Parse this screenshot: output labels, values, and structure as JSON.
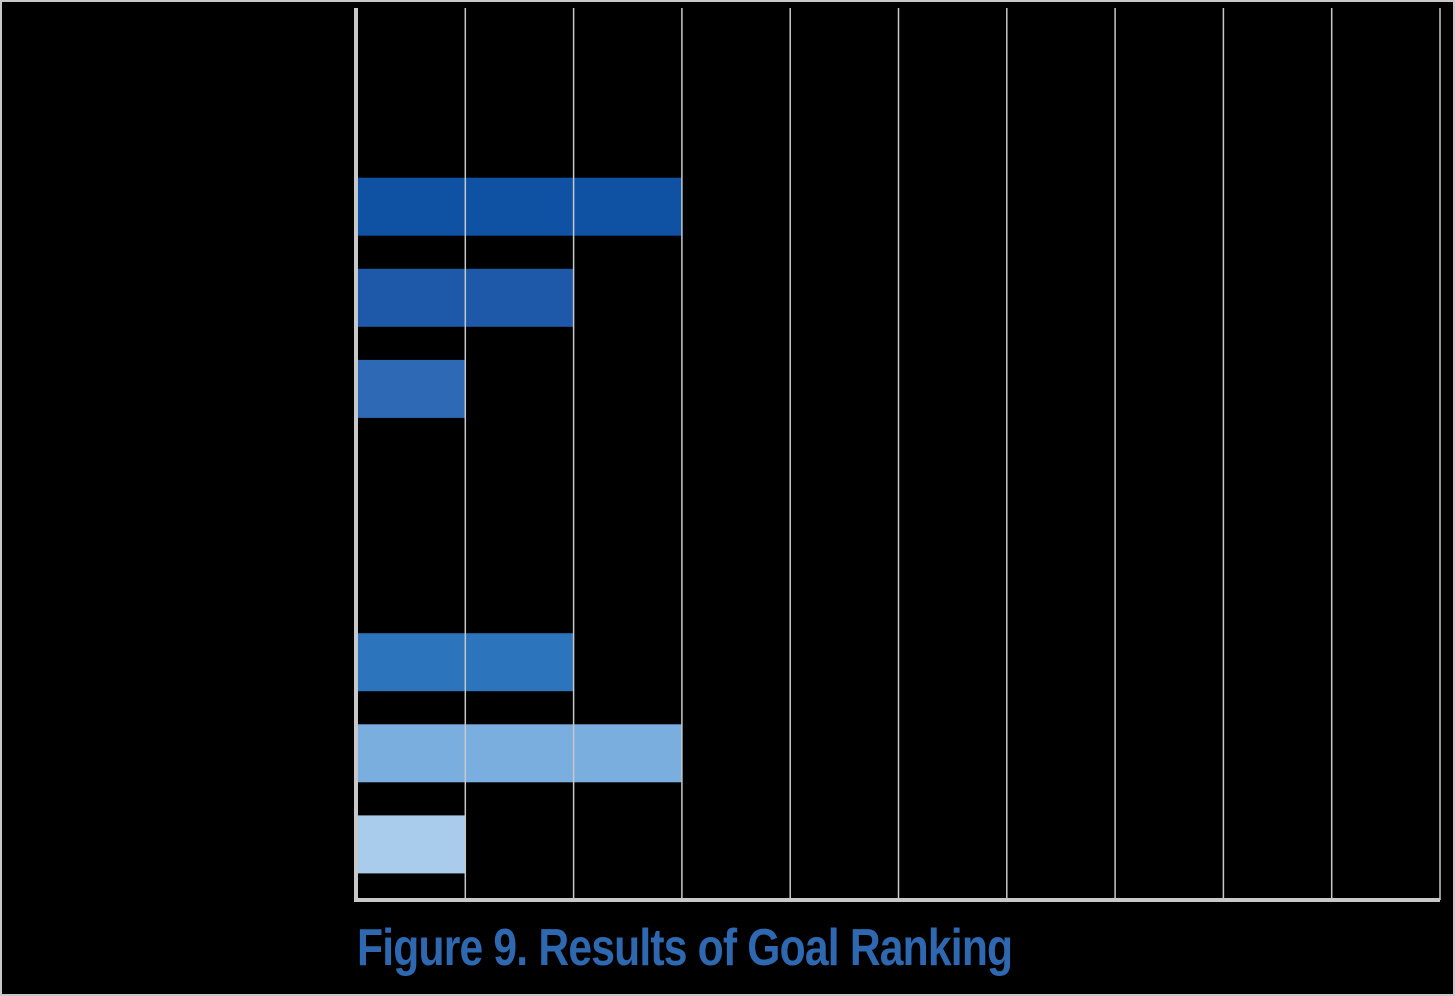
{
  "caption": "Figure 9. Results of Goal Ranking",
  "caption_color": "#2e68b1",
  "chart_data": {
    "type": "bar",
    "orientation": "horizontal",
    "title": "",
    "xlabel": "",
    "ylabel": "",
    "xlim": [
      0,
      10
    ],
    "grid": true,
    "gridline_color": "#c8c8c8",
    "axis_color": "#c8c8c8",
    "slots": 9,
    "bars": [
      {
        "slot": 1,
        "value": 3,
        "color": "#0f52a3"
      },
      {
        "slot": 2,
        "value": 2,
        "color": "#1e58a8"
      },
      {
        "slot": 3,
        "value": 1,
        "color": "#2e69b6"
      },
      {
        "slot": 6,
        "value": 2,
        "color": "#2c74bb"
      },
      {
        "slot": 7,
        "value": 3,
        "color": "#7aaede"
      },
      {
        "slot": 8,
        "value": 1,
        "color": "#a9ccec"
      }
    ]
  }
}
